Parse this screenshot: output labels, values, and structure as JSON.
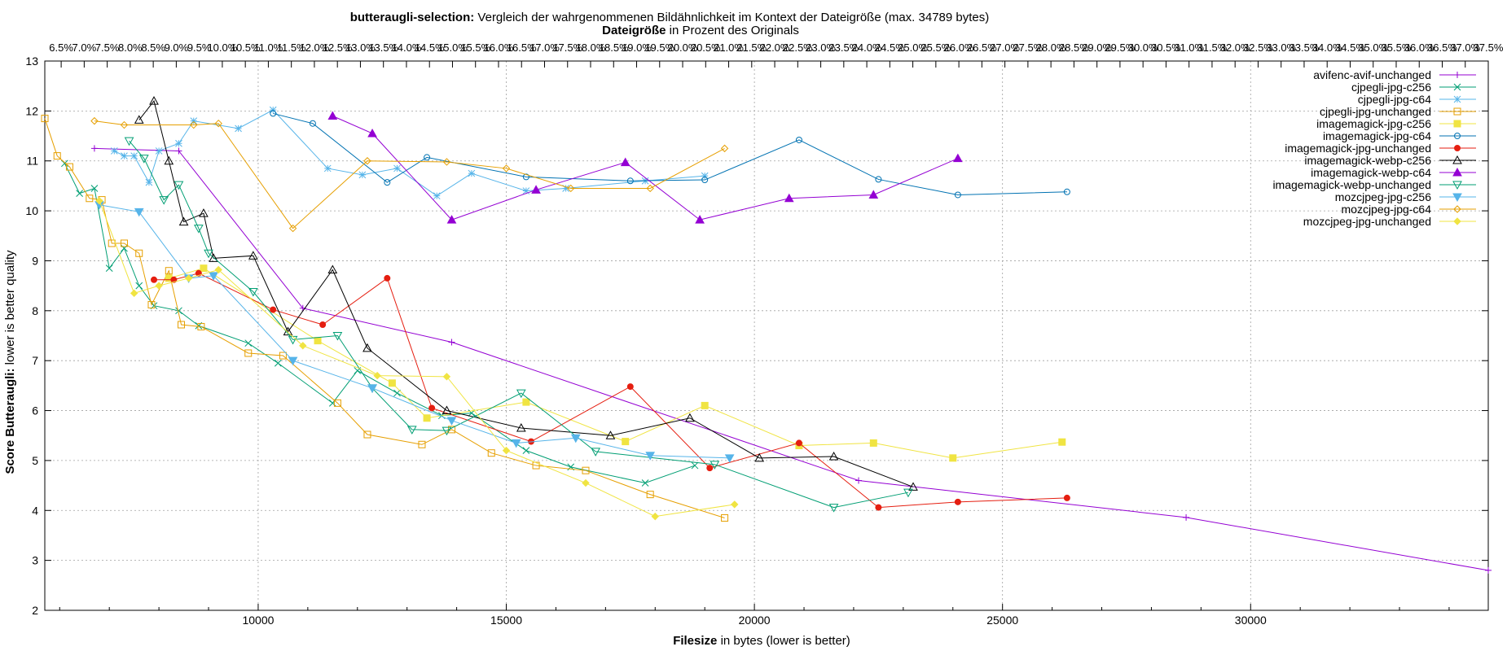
{
  "chart_data": {
    "type": "line",
    "title_bold": "butteraugli-selection:",
    "title_rest": "Vergleich der wahrgenommenen Bildähnlichkeit im Kontext der Dateigröße (max. 34789 bytes)",
    "subtitle_bold": "Dateigröße",
    "subtitle_rest": "in Prozent des Originals",
    "xlabel_bold": "Filesize",
    "xlabel_rest": "in bytes (lower is better)",
    "ylabel_bold": "Score Butteraugli:",
    "ylabel_rest": "lower is better quality",
    "xlim": [
      5700,
      34789
    ],
    "ylim": [
      2,
      13
    ],
    "x_ticks": [
      10000,
      15000,
      20000,
      25000,
      30000
    ],
    "y_ticks": [
      2,
      3,
      4,
      5,
      6,
      7,
      8,
      9,
      10,
      11,
      12,
      13
    ],
    "top_ticks": [
      "6.5%",
      "7.0%",
      "7.5%",
      "8.0%",
      "8.5%",
      "9.0%",
      "9.5%",
      "10.0%",
      "10.5%",
      "11.0%",
      "11.5%",
      "12.0%",
      "12.5%",
      "13.0%",
      "13.5%",
      "14.0%",
      "14.5%",
      "15.0%",
      "15.5%",
      "16.0%",
      "16.5%",
      "17.0%",
      "17.5%",
      "18.0%",
      "18.5%",
      "19.0%",
      "19.5%",
      "20.0%",
      "20.5%",
      "21.0%",
      "21.5%",
      "22.0%",
      "22.5%",
      "23.0%",
      "23.5%",
      "24.0%",
      "24.5%",
      "25.0%",
      "25.5%",
      "26.0%",
      "26.5%",
      "27.0%",
      "27.5%",
      "28.0%",
      "28.5%",
      "29.0%",
      "29.5%",
      "30.0%",
      "30.5%",
      "31.0%",
      "31.5%",
      "32.0%",
      "32.5%",
      "33.0%",
      "33.5%",
      "34.0%",
      "34.5%",
      "35.0%",
      "35.5%",
      "36.0%",
      "36.5%",
      "37.0%",
      "37.5%"
    ],
    "top_tick_start_percent": 6.5,
    "top_tick_step_percent": 0.5,
    "original_size_bytes": 92771,
    "grid": true,
    "legend_position": "top-right",
    "series": [
      {
        "name": "avifenc-avif-unchanged",
        "color": "#9400d3",
        "marker": "plus",
        "points": [
          [
            6700,
            11.25
          ],
          [
            8400,
            11.2
          ],
          [
            10900,
            8.05
          ],
          [
            13900,
            7.37
          ],
          [
            22100,
            4.6
          ],
          [
            28700,
            3.86
          ],
          [
            34789,
            2.8
          ]
        ]
      },
      {
        "name": "cjpegli-jpg-c256",
        "color": "#009e73",
        "marker": "x",
        "points": [
          [
            6100,
            10.95
          ],
          [
            6400,
            10.35
          ],
          [
            6700,
            10.45
          ],
          [
            7000,
            8.85
          ],
          [
            7300,
            9.25
          ],
          [
            7600,
            8.5
          ],
          [
            7900,
            8.1
          ],
          [
            8400,
            8.0
          ],
          [
            8800,
            7.7
          ],
          [
            9800,
            7.35
          ],
          [
            10400,
            6.95
          ],
          [
            11500,
            6.15
          ],
          [
            12000,
            6.8
          ],
          [
            12800,
            6.35
          ],
          [
            13700,
            5.9
          ],
          [
            14300,
            5.95
          ],
          [
            15400,
            5.2
          ],
          [
            16300,
            4.87
          ],
          [
            17800,
            4.55
          ],
          [
            18800,
            4.9
          ]
        ]
      },
      {
        "name": "cjpegli-jpg-c64",
        "color": "#56b4e9",
        "marker": "star",
        "points": [
          [
            7100,
            11.2
          ],
          [
            7300,
            11.1
          ],
          [
            7500,
            11.1
          ],
          [
            7800,
            10.57
          ],
          [
            8000,
            11.2
          ],
          [
            8400,
            11.35
          ],
          [
            8700,
            11.8
          ],
          [
            9600,
            11.65
          ],
          [
            10300,
            12.02
          ],
          [
            11400,
            10.85
          ],
          [
            12100,
            10.72
          ],
          [
            12800,
            10.85
          ],
          [
            13600,
            10.3
          ],
          [
            14300,
            10.75
          ],
          [
            15400,
            10.4
          ],
          [
            16200,
            10.45
          ],
          [
            17800,
            10.6
          ],
          [
            19000,
            10.7
          ]
        ]
      },
      {
        "name": "cjpegli-jpg-unchanged",
        "color": "#e69f00",
        "marker": "square",
        "points": [
          [
            5700,
            11.85
          ],
          [
            5950,
            11.1
          ],
          [
            6200,
            10.88
          ],
          [
            6600,
            10.25
          ],
          [
            6850,
            10.22
          ],
          [
            7050,
            9.35
          ],
          [
            7300,
            9.35
          ],
          [
            7600,
            9.15
          ],
          [
            7850,
            8.12
          ],
          [
            8200,
            8.8
          ],
          [
            8450,
            7.72
          ],
          [
            8850,
            7.68
          ],
          [
            9800,
            7.15
          ],
          [
            10500,
            7.1
          ],
          [
            11600,
            6.15
          ],
          [
            12200,
            5.52
          ],
          [
            13300,
            5.32
          ],
          [
            13900,
            5.62
          ],
          [
            14700,
            5.15
          ],
          [
            15600,
            4.9
          ],
          [
            16600,
            4.8
          ],
          [
            17900,
            4.32
          ],
          [
            19400,
            3.85
          ]
        ]
      },
      {
        "name": "imagemagick-jpg-c256",
        "color": "#f0e442",
        "marker": "filled-square",
        "points": [
          [
            8200,
            8.65
          ],
          [
            8900,
            8.85
          ],
          [
            11200,
            7.4
          ],
          [
            12700,
            6.55
          ],
          [
            13400,
            5.85
          ],
          [
            15400,
            6.17
          ],
          [
            17400,
            5.38
          ],
          [
            19000,
            6.1
          ],
          [
            20900,
            5.3
          ],
          [
            22400,
            5.35
          ],
          [
            24000,
            5.05
          ],
          [
            26200,
            5.37
          ]
        ]
      },
      {
        "name": "imagemagick-jpg-c64",
        "color": "#0072b2",
        "marker": "circle",
        "points": [
          [
            10300,
            11.95
          ],
          [
            11100,
            11.75
          ],
          [
            12600,
            10.57
          ],
          [
            13400,
            11.07
          ],
          [
            15400,
            10.68
          ],
          [
            17500,
            10.6
          ],
          [
            19000,
            10.62
          ],
          [
            20900,
            11.42
          ],
          [
            22500,
            10.63
          ],
          [
            24100,
            10.32
          ],
          [
            26300,
            10.38
          ]
        ]
      },
      {
        "name": "imagemagick-jpg-unchanged",
        "color": "#e51e10",
        "marker": "filled-circle",
        "points": [
          [
            7900,
            8.62
          ],
          [
            8300,
            8.62
          ],
          [
            8800,
            8.75
          ],
          [
            10300,
            8.02
          ],
          [
            11300,
            7.72
          ],
          [
            12600,
            8.65
          ],
          [
            13500,
            6.05
          ],
          [
            15500,
            5.38
          ],
          [
            17500,
            6.48
          ],
          [
            19100,
            4.85
          ],
          [
            20900,
            5.35
          ],
          [
            22500,
            4.06
          ],
          [
            24100,
            4.17
          ],
          [
            26300,
            4.25
          ]
        ]
      },
      {
        "name": "imagemagick-webp-c256",
        "color": "#000000",
        "marker": "triangle",
        "points": [
          [
            7600,
            11.82
          ],
          [
            7900,
            12.2
          ],
          [
            8200,
            11.0
          ],
          [
            8500,
            9.78
          ],
          [
            8900,
            9.95
          ],
          [
            9100,
            9.05
          ],
          [
            9900,
            9.1
          ],
          [
            10600,
            7.58
          ],
          [
            11500,
            8.82
          ],
          [
            12200,
            7.25
          ],
          [
            13800,
            6.0
          ],
          [
            15300,
            5.65
          ],
          [
            17100,
            5.5
          ],
          [
            18700,
            5.85
          ],
          [
            20100,
            5.05
          ],
          [
            21600,
            5.08
          ],
          [
            23200,
            4.47
          ]
        ]
      },
      {
        "name": "imagemagick-webp-c64",
        "color": "#9400d3",
        "marker": "filled-triangle",
        "points": [
          [
            11500,
            11.9
          ],
          [
            12300,
            11.55
          ],
          [
            13900,
            9.82
          ],
          [
            15600,
            10.42
          ],
          [
            17400,
            10.97
          ],
          [
            18900,
            9.82
          ],
          [
            20700,
            10.25
          ],
          [
            22400,
            10.32
          ],
          [
            24100,
            11.05
          ]
        ]
      },
      {
        "name": "imagemagick-webp-unchanged",
        "color": "#009e73",
        "marker": "triangle-down",
        "points": [
          [
            7400,
            11.4
          ],
          [
            7700,
            11.05
          ],
          [
            8100,
            10.22
          ],
          [
            8400,
            10.52
          ],
          [
            8800,
            9.65
          ],
          [
            9000,
            9.15
          ],
          [
            9900,
            8.38
          ],
          [
            10700,
            7.42
          ],
          [
            11600,
            7.5
          ],
          [
            12300,
            6.45
          ],
          [
            13100,
            5.62
          ],
          [
            13800,
            5.6
          ],
          [
            15300,
            6.35
          ],
          [
            16800,
            5.18
          ],
          [
            19200,
            4.92
          ],
          [
            21600,
            4.06
          ],
          [
            23100,
            4.36
          ]
        ]
      },
      {
        "name": "mozcjpeg-jpg-c256",
        "color": "#56b4e9",
        "marker": "filled-triangle-down",
        "points": [
          [
            6800,
            10.12
          ],
          [
            7600,
            9.98
          ],
          [
            8600,
            8.65
          ],
          [
            9100,
            8.7
          ],
          [
            10700,
            7.0
          ],
          [
            12300,
            6.45
          ],
          [
            13900,
            5.8
          ],
          [
            15200,
            5.35
          ],
          [
            16400,
            5.45
          ],
          [
            17900,
            5.1
          ],
          [
            19500,
            5.05
          ]
        ]
      },
      {
        "name": "mozcjpeg-jpg-c64",
        "color": "#e69f00",
        "marker": "diamond",
        "points": [
          [
            6700,
            11.8
          ],
          [
            7300,
            11.72
          ],
          [
            8700,
            11.72
          ],
          [
            9200,
            11.75
          ],
          [
            10700,
            9.65
          ],
          [
            12200,
            11.0
          ],
          [
            13800,
            10.98
          ],
          [
            15000,
            10.85
          ],
          [
            16300,
            10.45
          ],
          [
            17900,
            10.45
          ],
          [
            19400,
            11.25
          ]
        ]
      },
      {
        "name": "mozcjpeg-jpg-unchanged",
        "color": "#f0e442",
        "marker": "filled-diamond",
        "points": [
          [
            6800,
            10.2
          ],
          [
            7500,
            8.35
          ],
          [
            8000,
            8.5
          ],
          [
            8600,
            8.65
          ],
          [
            9200,
            8.82
          ],
          [
            10900,
            7.3
          ],
          [
            12400,
            6.7
          ],
          [
            13800,
            6.68
          ],
          [
            15000,
            5.2
          ],
          [
            16600,
            4.55
          ],
          [
            18000,
            3.88
          ],
          [
            19600,
            4.12
          ]
        ]
      }
    ]
  }
}
